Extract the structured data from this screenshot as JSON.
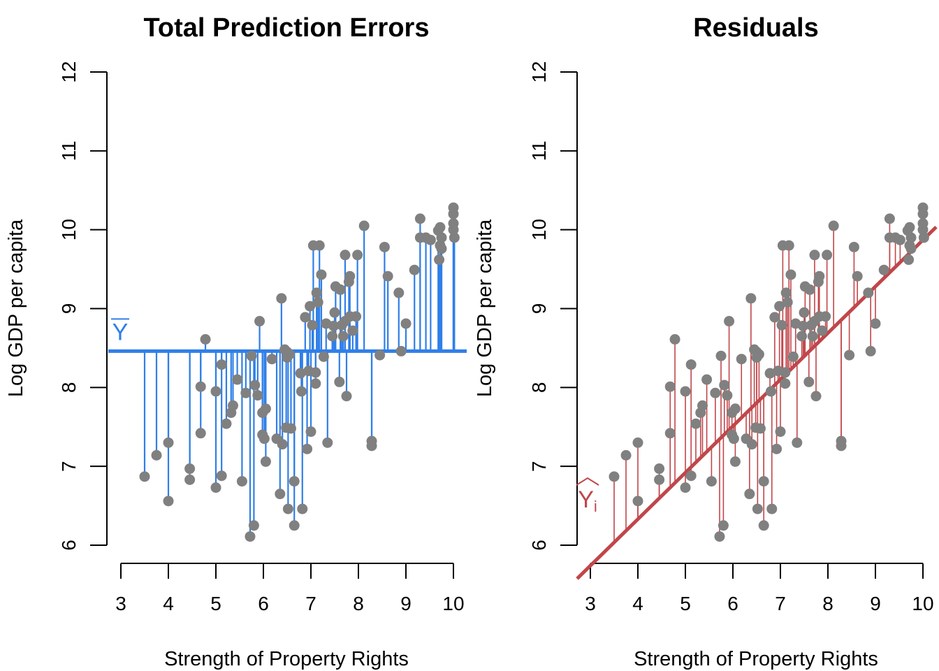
{
  "chart_data": [
    {
      "type": "scatter",
      "title": "Total Prediction Errors",
      "xlabel": "Strength of Property Rights",
      "ylabel": "Log GDP per capita",
      "xlim": [
        2.8,
        10.3
      ],
      "ylim": [
        6,
        12
      ],
      "xticks": [
        3,
        4,
        5,
        6,
        7,
        8,
        9,
        10
      ],
      "yticks": [
        6,
        7,
        8,
        9,
        10,
        11,
        12
      ],
      "grid": false,
      "mean_line": {
        "y": 8.46,
        "label": "Y",
        "color": "#2f7fe8"
      },
      "segments": "vertical lines from each point to the mean line",
      "point_color": "#808080",
      "series_ref": "points"
    },
    {
      "type": "scatter",
      "title": "Residuals",
      "xlabel": "Strength of Property Rights",
      "ylabel": "Log GDP per capita",
      "xlim": [
        2.8,
        10.3
      ],
      "ylim": [
        6,
        12
      ],
      "xticks": [
        3,
        4,
        5,
        6,
        7,
        8,
        9,
        10
      ],
      "yticks": [
        6,
        7,
        8,
        9,
        10,
        11,
        12
      ],
      "grid": false,
      "fit_line": {
        "intercept": 3.97,
        "slope": 0.59,
        "label": "Yi",
        "color": "#c0464a"
      },
      "segments": "vertical lines from each point to the fitted line",
      "point_color": "#808080",
      "series_ref": "points"
    }
  ],
  "points": [
    [
      3.5,
      6.87
    ],
    [
      3.75,
      7.14
    ],
    [
      4.0,
      6.56
    ],
    [
      4.0,
      7.3
    ],
    [
      4.45,
      6.97
    ],
    [
      4.45,
      6.83
    ],
    [
      4.68,
      8.01
    ],
    [
      4.68,
      7.42
    ],
    [
      4.78,
      8.61
    ],
    [
      5.0,
      7.95
    ],
    [
      5.0,
      6.73
    ],
    [
      5.12,
      8.29
    ],
    [
      5.12,
      6.88
    ],
    [
      5.22,
      7.54
    ],
    [
      5.32,
      7.68
    ],
    [
      5.36,
      7.77
    ],
    [
      5.45,
      8.1
    ],
    [
      5.55,
      6.81
    ],
    [
      5.63,
      7.93
    ],
    [
      5.72,
      6.11
    ],
    [
      5.75,
      8.4
    ],
    [
      5.8,
      6.25
    ],
    [
      5.82,
      8.03
    ],
    [
      5.88,
      7.9
    ],
    [
      5.92,
      8.84
    ],
    [
      5.98,
      7.68
    ],
    [
      5.98,
      7.4
    ],
    [
      6.02,
      7.35
    ],
    [
      6.05,
      7.73
    ],
    [
      6.05,
      7.06
    ],
    [
      6.18,
      8.36
    ],
    [
      6.28,
      7.35
    ],
    [
      6.35,
      6.65
    ],
    [
      6.38,
      9.13
    ],
    [
      6.4,
      7.28
    ],
    [
      6.45,
      8.48
    ],
    [
      6.48,
      7.49
    ],
    [
      6.5,
      8.45
    ],
    [
      6.5,
      8.38
    ],
    [
      6.52,
      6.46
    ],
    [
      6.55,
      8.42
    ],
    [
      6.58,
      7.48
    ],
    [
      6.65,
      6.81
    ],
    [
      6.65,
      6.25
    ],
    [
      6.78,
      8.18
    ],
    [
      6.8,
      7.95
    ],
    [
      6.82,
      6.46
    ],
    [
      6.88,
      8.89
    ],
    [
      6.92,
      7.22
    ],
    [
      6.95,
      8.21
    ],
    [
      6.98,
      9.03
    ],
    [
      7.0,
      7.44
    ],
    [
      7.03,
      8.79
    ],
    [
      7.05,
      9.8
    ],
    [
      7.1,
      8.19
    ],
    [
      7.1,
      8.05
    ],
    [
      7.12,
      9.2
    ],
    [
      7.15,
      9.08
    ],
    [
      7.18,
      9.8
    ],
    [
      7.22,
      9.43
    ],
    [
      7.27,
      8.39
    ],
    [
      7.32,
      8.81
    ],
    [
      7.35,
      7.3
    ],
    [
      7.45,
      8.65
    ],
    [
      7.48,
      8.78
    ],
    [
      7.5,
      8.95
    ],
    [
      7.52,
      9.28
    ],
    [
      7.6,
      8.07
    ],
    [
      7.62,
      9.24
    ],
    [
      7.65,
      8.79
    ],
    [
      7.68,
      8.65
    ],
    [
      7.72,
      8.84
    ],
    [
      7.72,
      9.68
    ],
    [
      7.75,
      7.89
    ],
    [
      7.8,
      9.34
    ],
    [
      7.82,
      9.41
    ],
    [
      7.82,
      8.9
    ],
    [
      7.88,
      8.72
    ],
    [
      7.95,
      8.9
    ],
    [
      7.98,
      9.68
    ],
    [
      8.12,
      10.05
    ],
    [
      8.28,
      7.32
    ],
    [
      8.28,
      7.26
    ],
    [
      8.45,
      8.41
    ],
    [
      8.55,
      9.78
    ],
    [
      8.62,
      9.41
    ],
    [
      8.85,
      9.2
    ],
    [
      8.9,
      8.46
    ],
    [
      9.0,
      8.81
    ],
    [
      9.18,
      9.49
    ],
    [
      9.3,
      10.14
    ],
    [
      9.3,
      9.9
    ],
    [
      9.42,
      9.9
    ],
    [
      9.52,
      9.87
    ],
    [
      9.68,
      9.99
    ],
    [
      9.7,
      9.62
    ],
    [
      9.72,
      9.8
    ],
    [
      9.72,
      10.03
    ],
    [
      9.75,
      9.9
    ],
    [
      9.75,
      9.76
    ],
    [
      10.0,
      10.28
    ],
    [
      10.0,
      10.2
    ],
    [
      10.0,
      10.08
    ],
    [
      10.0,
      10.0
    ],
    [
      10.02,
      9.9
    ]
  ]
}
